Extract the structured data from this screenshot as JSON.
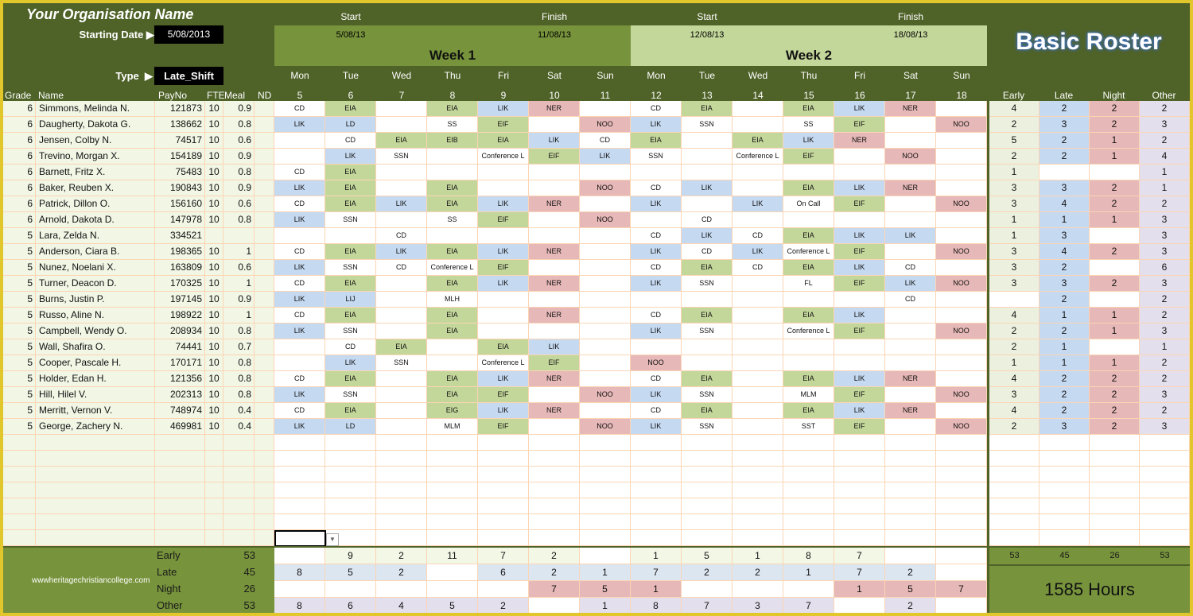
{
  "header": {
    "org_name": "Your Organisation Name",
    "starting_date_label": "Starting Date",
    "starting_date": "5/08/2013",
    "type_label": "Type",
    "type_value": "Late_Shift",
    "arrow": "▶",
    "title": "Basic Roster"
  },
  "weeks": [
    {
      "label": "Week 1",
      "start_label": "Start",
      "finish_label": "Finish",
      "start": "5/08/13",
      "finish": "11/08/13"
    },
    {
      "label": "Week 2",
      "start_label": "Start",
      "finish_label": "Finish",
      "start": "12/08/13",
      "finish": "18/08/13"
    }
  ],
  "day_names": [
    "Mon",
    "Tue",
    "Wed",
    "Thu",
    "Fri",
    "Sat",
    "Sun",
    "Mon",
    "Tue",
    "Wed",
    "Thu",
    "Fri",
    "Sat",
    "Sun"
  ],
  "day_numbers": [
    "5",
    "6",
    "7",
    "8",
    "9",
    "10",
    "11",
    "12",
    "13",
    "14",
    "15",
    "16",
    "17",
    "18"
  ],
  "columns": {
    "grade": "Grade",
    "name": "Name",
    "payno": "PayNo",
    "fte": "FTE",
    "meal": "Meal",
    "nd": "ND"
  },
  "summary_columns": [
    "Early",
    "Late",
    "Night",
    "Other"
  ],
  "colors": {
    "header": "#4f6228",
    "week1": "#77933c",
    "week2": "#c4d79b",
    "late": "#c5d9f1",
    "early": "#c4d79b",
    "night": "#e6b8b7",
    "other": "#e4dfec"
  },
  "code_colors": {
    "LIK": "blue",
    "LD": "blue",
    "LIJ": "blue",
    "EIA": "green",
    "EIF": "green",
    "EIB": "green",
    "EIG": "green",
    "NER": "pink",
    "NOO": "pink"
  },
  "employees": [
    {
      "grade": "6",
      "name": "Simmons, Melinda N.",
      "payno": "121873",
      "fte": "10",
      "meal": "0.9",
      "nd": "",
      "shifts": [
        "CD",
        "EIA",
        "",
        "EIA",
        "LIK",
        "NER",
        "",
        "CD",
        "EIA",
        "",
        "EIA",
        "LIK",
        "NER",
        ""
      ],
      "summary": [
        "4",
        "2",
        "2",
        "2"
      ]
    },
    {
      "grade": "6",
      "name": "Daugherty, Dakota G.",
      "payno": "138662",
      "fte": "10",
      "meal": "0.8",
      "nd": "",
      "shifts": [
        "LIK",
        "LD",
        "",
        "SS",
        "EIF",
        "",
        "NOO",
        "LIK",
        "SSN",
        "",
        "SS",
        "EIF",
        "",
        "NOO"
      ],
      "summary": [
        "2",
        "3",
        "2",
        "3"
      ]
    },
    {
      "grade": "6",
      "name": "Jensen, Colby N.",
      "payno": "74517",
      "fte": "10",
      "meal": "0.6",
      "nd": "",
      "shifts": [
        "",
        "CD",
        "EIA",
        "EIB",
        "EIA",
        "LIK",
        "CD",
        "EIA",
        "",
        "EIA",
        "LIK",
        "NER",
        "",
        ""
      ],
      "summary": [
        "5",
        "2",
        "1",
        "2"
      ]
    },
    {
      "grade": "6",
      "name": "Trevino, Morgan X.",
      "payno": "154189",
      "fte": "10",
      "meal": "0.9",
      "nd": "",
      "shifts": [
        "",
        "LIK",
        "SSN",
        "",
        "Conference L",
        "EIF",
        "LIK",
        "SSN",
        "",
        "Conference L",
        "EIF",
        "",
        "NOO",
        ""
      ],
      "summary": [
        "2",
        "2",
        "1",
        "4"
      ]
    },
    {
      "grade": "6",
      "name": "Barnett, Fritz X.",
      "payno": "75483",
      "fte": "10",
      "meal": "0.8",
      "nd": "",
      "shifts": [
        "CD",
        "EIA",
        "",
        "",
        "",
        "",
        "",
        "",
        "",
        "",
        "",
        "",
        "",
        ""
      ],
      "summary": [
        "1",
        "",
        "",
        "1"
      ]
    },
    {
      "grade": "6",
      "name": "Baker, Reuben X.",
      "payno": "190843",
      "fte": "10",
      "meal": "0.9",
      "nd": "",
      "shifts": [
        "LIK",
        "EIA",
        "",
        "EIA",
        "",
        "",
        "NOO",
        "CD",
        "LIK",
        "",
        "EIA",
        "LIK",
        "NER",
        ""
      ],
      "summary": [
        "3",
        "3",
        "2",
        "1"
      ]
    },
    {
      "grade": "6",
      "name": "Patrick, Dillon O.",
      "payno": "156160",
      "fte": "10",
      "meal": "0.6",
      "nd": "",
      "shifts": [
        "CD",
        "EIA",
        "LIK",
        "EIA",
        "LIK",
        "NER",
        "",
        "LIK",
        "",
        "LIK",
        "On Call",
        "EIF",
        "",
        "NOO"
      ],
      "summary": [
        "3",
        "4",
        "2",
        "2"
      ]
    },
    {
      "grade": "6",
      "name": "Arnold, Dakota D.",
      "payno": "147978",
      "fte": "10",
      "meal": "0.8",
      "nd": "",
      "shifts": [
        "LIK",
        "SSN",
        "",
        "SS",
        "EIF",
        "",
        "NOO",
        "",
        "CD",
        "",
        "",
        "",
        "",
        ""
      ],
      "summary": [
        "1",
        "1",
        "1",
        "3"
      ]
    },
    {
      "grade": "5",
      "name": "Lara, Zelda N.",
      "payno": "334521",
      "fte": "",
      "meal": "",
      "nd": "",
      "shifts": [
        "",
        "",
        "CD",
        "",
        "",
        "",
        "",
        "CD",
        "LIK",
        "CD",
        "EIA",
        "LIK",
        "LIK",
        ""
      ],
      "summary": [
        "1",
        "3",
        "",
        "3"
      ]
    },
    {
      "grade": "5",
      "name": "Anderson, Ciara B.",
      "payno": "198365",
      "fte": "10",
      "meal": "1",
      "nd": "",
      "shifts": [
        "CD",
        "EIA",
        "LIK",
        "EIA",
        "LIK",
        "NER",
        "",
        "LIK",
        "CD",
        "LIK",
        "Conference L",
        "EIF",
        "",
        "NOO"
      ],
      "summary": [
        "3",
        "4",
        "2",
        "3"
      ]
    },
    {
      "grade": "5",
      "name": "Nunez, Noelani X.",
      "payno": "163809",
      "fte": "10",
      "meal": "0.6",
      "nd": "",
      "shifts": [
        "LIK",
        "SSN",
        "CD",
        "Conference L",
        "EIF",
        "",
        "",
        "CD",
        "EIA",
        "CD",
        "EIA",
        "LIK",
        "CD",
        ""
      ],
      "summary": [
        "3",
        "2",
        "",
        "6"
      ]
    },
    {
      "grade": "5",
      "name": "Turner, Deacon D.",
      "payno": "170325",
      "fte": "10",
      "meal": "1",
      "nd": "",
      "shifts": [
        "CD",
        "EIA",
        "",
        "EIA",
        "LIK",
        "NER",
        "",
        "LIK",
        "SSN",
        "",
        "FL",
        "EIF",
        "LIK",
        "NOO"
      ],
      "summary": [
        "3",
        "3",
        "2",
        "3"
      ]
    },
    {
      "grade": "5",
      "name": "Burns, Justin P.",
      "payno": "197145",
      "fte": "10",
      "meal": "0.9",
      "nd": "",
      "shifts": [
        "LIK",
        "LIJ",
        "",
        "MLH",
        "",
        "",
        "",
        "",
        "",
        "",
        "",
        "",
        "CD",
        ""
      ],
      "summary": [
        "",
        "2",
        "",
        "2"
      ]
    },
    {
      "grade": "5",
      "name": "Russo, Aline N.",
      "payno": "198922",
      "fte": "10",
      "meal": "1",
      "nd": "",
      "shifts": [
        "CD",
        "EIA",
        "",
        "EIA",
        "",
        "NER",
        "",
        "CD",
        "EIA",
        "",
        "EIA",
        "LIK",
        "",
        ""
      ],
      "summary": [
        "4",
        "1",
        "1",
        "2"
      ]
    },
    {
      "grade": "5",
      "name": "Campbell, Wendy O.",
      "payno": "208934",
      "fte": "10",
      "meal": "0.8",
      "nd": "",
      "shifts": [
        "LIK",
        "SSN",
        "",
        "EIA",
        "",
        "",
        "",
        "LIK",
        "SSN",
        "",
        "Conference L",
        "EIF",
        "",
        "NOO"
      ],
      "summary": [
        "2",
        "2",
        "1",
        "3"
      ]
    },
    {
      "grade": "5",
      "name": "Wall, Shafira O.",
      "payno": "74441",
      "fte": "10",
      "meal": "0.7",
      "nd": "",
      "shifts": [
        "",
        "CD",
        "EIA",
        "",
        "EIA",
        "LIK",
        "",
        "",
        "",
        "",
        "",
        "",
        "",
        ""
      ],
      "summary": [
        "2",
        "1",
        "",
        "1"
      ]
    },
    {
      "grade": "5",
      "name": "Cooper, Pascale H.",
      "payno": "170171",
      "fte": "10",
      "meal": "0.8",
      "nd": "",
      "shifts": [
        "",
        "LIK",
        "SSN",
        "",
        "Conference L",
        "EIF",
        "",
        "NOO",
        "",
        "",
        "",
        "",
        "",
        ""
      ],
      "summary": [
        "1",
        "1",
        "1",
        "2"
      ]
    },
    {
      "grade": "5",
      "name": "Holder, Edan H.",
      "payno": "121356",
      "fte": "10",
      "meal": "0.8",
      "nd": "",
      "shifts": [
        "CD",
        "EIA",
        "",
        "EIA",
        "LIK",
        "NER",
        "",
        "CD",
        "EIA",
        "",
        "EIA",
        "LIK",
        "NER",
        ""
      ],
      "summary": [
        "4",
        "2",
        "2",
        "2"
      ]
    },
    {
      "grade": "5",
      "name": "Hill, Hilel V.",
      "payno": "202313",
      "fte": "10",
      "meal": "0.8",
      "nd": "",
      "shifts": [
        "LIK",
        "SSN",
        "",
        "EIA",
        "EIF",
        "",
        "NOO",
        "LIK",
        "SSN",
        "",
        "MLM",
        "EIF",
        "",
        "NOO"
      ],
      "summary": [
        "3",
        "2",
        "2",
        "3"
      ]
    },
    {
      "grade": "5",
      "name": "Merritt, Vernon V.",
      "payno": "748974",
      "fte": "10",
      "meal": "0.4",
      "nd": "",
      "shifts": [
        "CD",
        "EIA",
        "",
        "EIG",
        "LIK",
        "NER",
        "",
        "CD",
        "EIA",
        "",
        "EIA",
        "LIK",
        "NER",
        ""
      ],
      "summary": [
        "4",
        "2",
        "2",
        "2"
      ]
    },
    {
      "grade": "5",
      "name": "George, Zachery N.",
      "payno": "469981",
      "fte": "10",
      "meal": "0.4",
      "nd": "",
      "shifts": [
        "LIK",
        "LD",
        "",
        "MLM",
        "EIF",
        "",
        "NOO",
        "LIK",
        "SSN",
        "",
        "SST",
        "EIF",
        "",
        "NOO"
      ],
      "summary": [
        "2",
        "3",
        "2",
        "3"
      ]
    }
  ],
  "totals": {
    "rows": [
      {
        "label": "Early",
        "total": "53",
        "days": [
          "",
          "9",
          "2",
          "11",
          "7",
          "2",
          "",
          "1",
          "5",
          "1",
          "8",
          "7",
          "",
          ""
        ]
      },
      {
        "label": "Late",
        "total": "45",
        "days": [
          "8",
          "5",
          "2",
          "",
          "6",
          "2",
          "1",
          "7",
          "2",
          "2",
          "1",
          "7",
          "2",
          ""
        ]
      },
      {
        "label": "Night",
        "total": "26",
        "days": [
          "",
          "",
          "",
          "",
          "",
          "7",
          "5",
          "1",
          "",
          "",
          "",
          "1",
          "5",
          "7"
        ]
      },
      {
        "label": "Other",
        "total": "53",
        "days": [
          "8",
          "6",
          "4",
          "5",
          "2",
          "",
          "1",
          "8",
          "7",
          "3",
          "7",
          "",
          "2",
          ""
        ]
      }
    ],
    "summary_totals": [
      "53",
      "45",
      "26",
      "53"
    ],
    "hours": "1585 Hours",
    "watermark": "wwwheritagechristiancollege.com"
  }
}
